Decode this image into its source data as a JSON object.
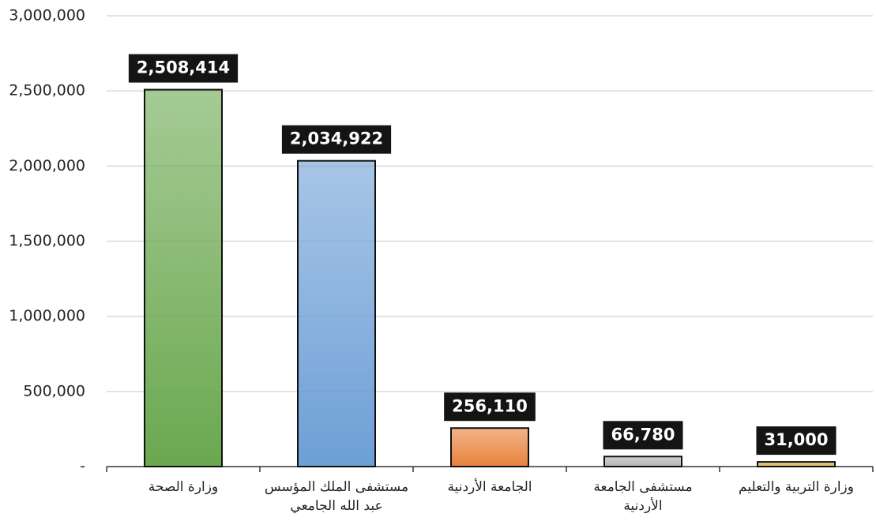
{
  "chart_data": {
    "type": "bar",
    "categories": [
      "وزارة الصحة",
      "مستشفى الملك المؤسس\nعبد الله الجامعي",
      "الجامعة الأردنية",
      "مستشفى الجامعة\nالأردنية",
      "وزارة التربية والتعليم"
    ],
    "values": [
      2508414,
      2034922,
      256110,
      66780,
      31000
    ],
    "value_labels": [
      "2,508,414",
      "2,034,922",
      "256,110",
      "66,780",
      "31,000"
    ],
    "colors": [
      "#6aa84f",
      "#6d9fd6",
      "#e8823c",
      "#b3b3b3",
      "#d8b64e"
    ],
    "ylim": [
      0,
      3000000
    ],
    "yticks": [
      {
        "value": 0,
        "label": "-"
      },
      {
        "value": 500000,
        "label": "500,000"
      },
      {
        "value": 1000000,
        "label": "1,000,000"
      },
      {
        "value": 1500000,
        "label": "1,500,000"
      },
      {
        "value": 2000000,
        "label": "2,000,000"
      },
      {
        "value": 2500000,
        "label": "2,500,000"
      },
      {
        "value": 3000000,
        "label": "3,000,000"
      }
    ],
    "grid": true
  }
}
